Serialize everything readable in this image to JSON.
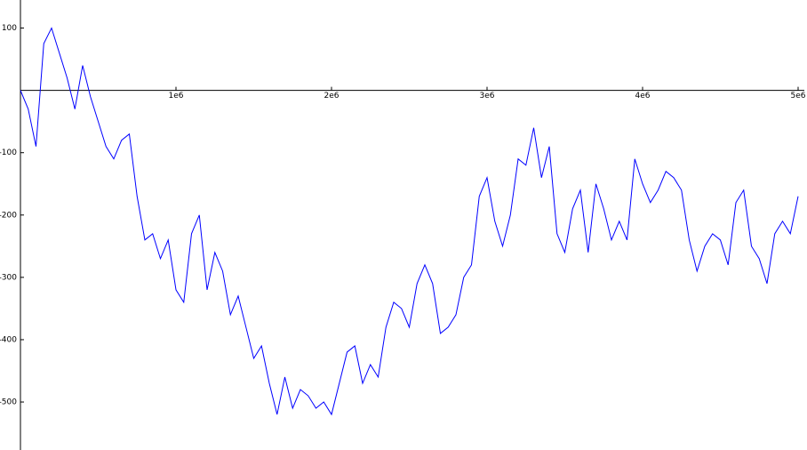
{
  "chart_data": {
    "type": "line",
    "x": [
      0,
      50000,
      100000,
      150000,
      200000,
      250000,
      300000,
      350000,
      400000,
      450000,
      500000,
      550000,
      600000,
      650000,
      700000,
      750000,
      800000,
      850000,
      900000,
      950000,
      1000000,
      1050000,
      1100000,
      1150000,
      1200000,
      1250000,
      1300000,
      1350000,
      1400000,
      1450000,
      1500000,
      1550000,
      1600000,
      1650000,
      1700000,
      1750000,
      1800000,
      1850000,
      1900000,
      1950000,
      2000000,
      2050000,
      2100000,
      2150000,
      2200000,
      2250000,
      2300000,
      2350000,
      2400000,
      2450000,
      2500000,
      2550000,
      2600000,
      2650000,
      2700000,
      2750000,
      2800000,
      2850000,
      2900000,
      2950000,
      3000000,
      3050000,
      3100000,
      3150000,
      3200000,
      3250000,
      3300000,
      3350000,
      3400000,
      3450000,
      3500000,
      3550000,
      3600000,
      3650000,
      3700000,
      3750000,
      3800000,
      3850000,
      3900000,
      3950000,
      4000000,
      4050000,
      4100000,
      4150000,
      4200000,
      4250000,
      4300000,
      4350000,
      4400000,
      4450000,
      4500000,
      4550000,
      4600000,
      4650000,
      4700000,
      4750000,
      4800000,
      4850000,
      4900000,
      4950000,
      5000000
    ],
    "series": [
      {
        "color": "#0000ff",
        "values": [
          0,
          -30,
          -90,
          75,
          100,
          60,
          20,
          -30,
          40,
          -10,
          -50,
          -90,
          -110,
          -80,
          -70,
          -170,
          -240,
          -230,
          -270,
          -240,
          -320,
          -340,
          -230,
          -200,
          -320,
          -260,
          -290,
          -360,
          -330,
          -380,
          -430,
          -410,
          -470,
          -520,
          -460,
          -510,
          -480,
          -490,
          -510,
          -500,
          -520,
          -470,
          -420,
          -410,
          -470,
          -440,
          -460,
          -380,
          -340,
          -350,
          -380,
          -310,
          -280,
          -310,
          -390,
          -380,
          -360,
          -300,
          -280,
          -170,
          -140,
          -210,
          -250,
          -200,
          -110,
          -120,
          -60,
          -140,
          -90,
          -230,
          -260,
          -190,
          -160,
          -260,
          -150,
          -190,
          -240,
          -210,
          -240,
          -110,
          -150,
          -180,
          -160,
          -130,
          -140,
          -160,
          -240,
          -290,
          -250,
          -230,
          -240,
          -280,
          -180,
          -160,
          -250,
          -270,
          -310,
          -230,
          -210,
          -230,
          -170
        ]
      }
    ],
    "xlim": [
      0,
      5040000
    ],
    "ylim": [
      -577,
      145
    ],
    "xticks": [
      {
        "value": 1000000,
        "label": "1e6"
      },
      {
        "value": 2000000,
        "label": "2e6"
      },
      {
        "value": 3000000,
        "label": "3e6"
      },
      {
        "value": 4000000,
        "label": "4e6"
      },
      {
        "value": 5000000,
        "label": "5e6"
      }
    ],
    "yticks": [
      -500,
      -400,
      -300,
      -200,
      -100,
      100
    ]
  }
}
